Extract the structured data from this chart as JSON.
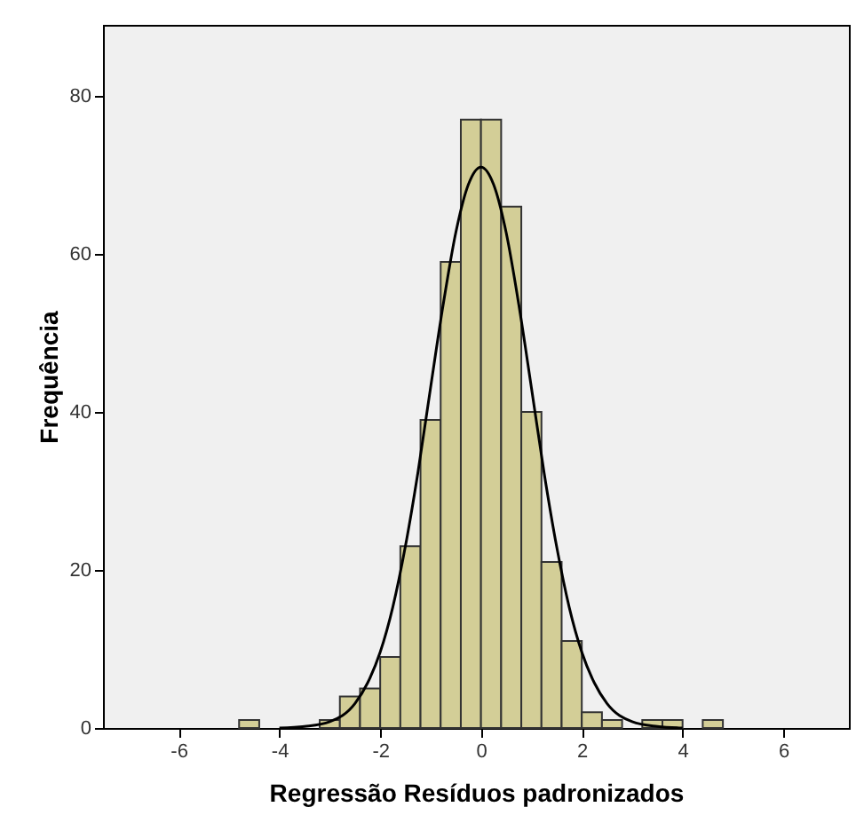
{
  "chart_data": {
    "type": "histogram",
    "xlabel": "Regressão Resíduos padronizados",
    "ylabel": "Frequência",
    "bins": [
      -4.8,
      -4.4,
      -4.0,
      -3.6,
      -3.2,
      -2.8,
      -2.4,
      -2.0,
      -1.6,
      -1.2,
      -0.8,
      -0.4,
      0,
      0.4,
      0.8,
      1.2,
      1.6,
      2.0,
      2.4,
      2.8,
      3.2,
      3.6,
      4.0,
      4.4,
      4.8
    ],
    "values": [
      1,
      0,
      0,
      0,
      1,
      4,
      5,
      9,
      23,
      39,
      59,
      77,
      77,
      66,
      40,
      21,
      11,
      2,
      1,
      0,
      1,
      1,
      0,
      1
    ],
    "color": "#d3ce97",
    "series": [
      {
        "type": "line",
        "color": "#000000",
        "x": [
          -4.0,
          -3.5,
          -3.0,
          -2.5,
          -2.25,
          -2.0,
          -1.75,
          -1.5,
          -1.25,
          -1.0,
          -0.75,
          -0.5,
          -0.25,
          0,
          0.25,
          0.5,
          0.75,
          1.0,
          1.25,
          1.5,
          1.75,
          2.0,
          2.25,
          2.5,
          3.0,
          3.5,
          4.0
        ],
        "values": [
          0,
          0.2,
          0.8,
          3.1,
          5.7,
          9.6,
          15.3,
          23,
          32.4,
          43.1,
          53.6,
          62.7,
          68.8,
          71,
          68.8,
          62.7,
          53.6,
          43.1,
          32.4,
          23,
          15.3,
          9.6,
          5.7,
          3.1,
          0.8,
          0.2,
          0
        ]
      }
    ],
    "xlim": [
      -7.5,
      7.3
    ],
    "xticks": [
      -6,
      -4,
      -2,
      0,
      2,
      4,
      6
    ],
    "ylim": [
      0,
      89
    ],
    "yticks": [
      0,
      20,
      40,
      60,
      80
    ],
    "grid": false
  }
}
